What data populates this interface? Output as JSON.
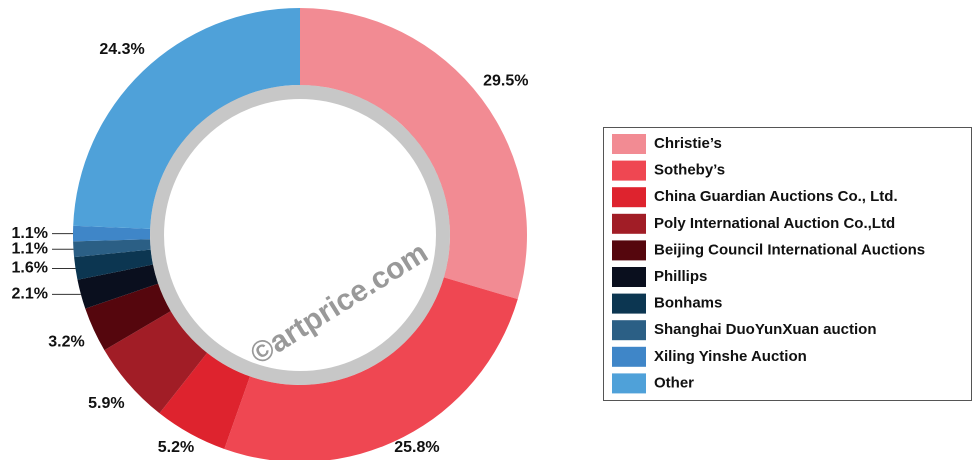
{
  "chart_data": {
    "type": "donut",
    "categories": [
      "Christie’s",
      "Sotheby’s",
      "China Guardian Auctions Co., Ltd.",
      "Poly International Auction Co.,Ltd",
      "Beijing Council International Auctions",
      "Phillips",
      "Bonhams",
      "Shanghai DuoYunXuan auction",
      "Xiling Yinshe Auction",
      "Other"
    ],
    "values": [
      29.5,
      25.8,
      5.2,
      5.9,
      3.2,
      2.1,
      1.6,
      1.1,
      1.1,
      24.3
    ],
    "value_labels": [
      "29.5%",
      "25.8%",
      "5.2%",
      "5.9%",
      "3.2%",
      "2.1%",
      "1.6%",
      "1.1%",
      "1.1%",
      "24.3%"
    ],
    "colors": [
      "#f28b93",
      "#ef4752",
      "#de232e",
      "#a11d26",
      "#55060d",
      "#0a0f1e",
      "#0c3651",
      "#2b5f85",
      "#3f86c8",
      "#4fa1d9"
    ],
    "watermark": "©artprice.com"
  }
}
